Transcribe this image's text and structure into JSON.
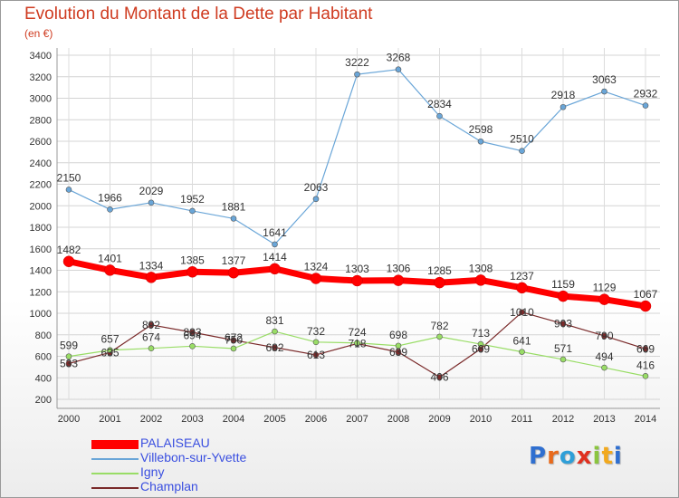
{
  "chart_data": {
    "type": "line",
    "title": "Evolution du Montant de la Dette par Habitant",
    "subtitle": "(en €)",
    "x": [
      "2000",
      "2001",
      "2002",
      "2003",
      "2004",
      "2005",
      "2006",
      "2007",
      "2008",
      "2009",
      "2010",
      "2011",
      "2012",
      "2013",
      "2014"
    ],
    "ylim": [
      200,
      3400
    ],
    "yticks": [
      200,
      400,
      600,
      800,
      1000,
      1200,
      1400,
      1600,
      1800,
      2000,
      2200,
      2400,
      2600,
      2800,
      3000,
      3200,
      3400
    ],
    "grid": true,
    "legend_position": "bottom-left",
    "series": [
      {
        "name": "PALAISEAU",
        "color": "#ff0000",
        "values": [
          1482,
          1401,
          1334,
          1385,
          1377,
          1414,
          1324,
          1303,
          1306,
          1285,
          1308,
          1237,
          1159,
          1129,
          1067
        ]
      },
      {
        "name": "Villebon-sur-Yvette",
        "color": "#6aa6d8",
        "values": [
          2150,
          1966,
          2029,
          1952,
          1881,
          1641,
          2063,
          3222,
          3268,
          2834,
          2598,
          2510,
          2918,
          3063,
          2932
        ]
      },
      {
        "name": "Igny",
        "color": "#99dd66",
        "values": [
          599,
          657,
          674,
          694,
          672,
          831,
          732,
          724,
          698,
          782,
          713,
          641,
          571,
          494,
          416
        ]
      },
      {
        "name": "Champlan",
        "color": "#7a2a2a",
        "values": [
          533,
          635,
          892,
          823,
          750,
          682,
          613,
          718,
          639,
          406,
          669,
          1010,
          903,
          790,
          669
        ]
      }
    ]
  },
  "logo": {
    "letters": [
      {
        "ch": "P",
        "color": "#2f6fd0"
      },
      {
        "ch": "r",
        "color": "#e86a1c"
      },
      {
        "ch": "o",
        "color": "#2f9fd8"
      },
      {
        "ch": "x",
        "color": "#e03020"
      },
      {
        "ch": "i",
        "color": "#8bc53f"
      },
      {
        "ch": "t",
        "color": "#f2a91e"
      },
      {
        "ch": "i",
        "color": "#2f6fd0"
      }
    ]
  }
}
